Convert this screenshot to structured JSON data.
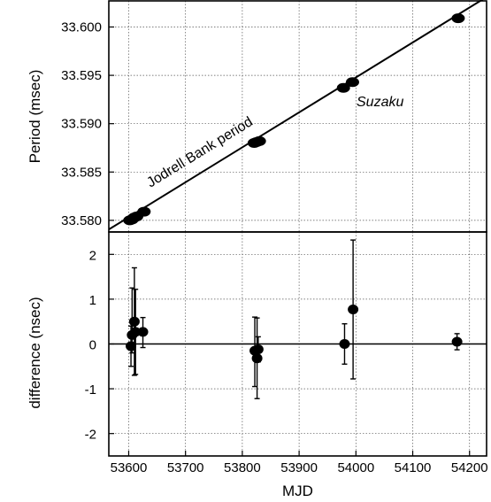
{
  "chart_data": [
    {
      "type": "scatter",
      "panel": "top",
      "title": "",
      "xlabel": "MJD",
      "ylabel": "Period (msec)",
      "xlim": [
        53565,
        54230
      ],
      "ylim": [
        33.5788,
        33.6027
      ],
      "grid": true,
      "yticks": [
        "33.580",
        "33.585",
        "33.590",
        "33.595",
        "33.600"
      ],
      "ytick_values": [
        33.58,
        33.585,
        33.59,
        33.595,
        33.6
      ],
      "line": {
        "name": "Jodrell Bank period",
        "x": [
          53565,
          54230
        ],
        "y": [
          33.57906,
          33.6031
        ]
      },
      "points": {
        "x": [
          53602,
          53606,
          53610,
          53614,
          53627,
          53821,
          53825,
          53830,
          53978,
          53994,
          54180
        ],
        "y": [
          33.58,
          33.5801,
          33.5803,
          33.5804,
          33.5809,
          33.588,
          33.5881,
          33.5882,
          33.5937,
          33.5943,
          33.6009
        ]
      },
      "annotations": [
        "Jodrell Bank period",
        "Suzaku"
      ]
    },
    {
      "type": "scatter",
      "panel": "bottom",
      "title": "",
      "xlabel": "MJD",
      "ylabel": "difference (nsec)",
      "xlim": [
        53565,
        54230
      ],
      "ylim": [
        -2.5,
        2.5
      ],
      "grid": true,
      "xticks": [
        "53600",
        "53700",
        "53800",
        "53900",
        "54000",
        "54100",
        "54200"
      ],
      "xtick_values": [
        53600,
        53700,
        53800,
        53900,
        54000,
        54100,
        54200
      ],
      "yticks": [
        "2",
        "1",
        "0",
        "-1",
        "-2"
      ],
      "ytick_values": [
        2,
        1,
        0,
        -1,
        -2
      ],
      "zero_line": true,
      "points": {
        "x": [
          53604,
          53606,
          53610,
          53612,
          53625,
          53822,
          53826,
          53828,
          53980,
          53995,
          54178
        ],
        "y": [
          -0.05,
          0.2,
          0.5,
          0.27,
          0.27,
          -0.15,
          -0.32,
          -0.12,
          0.0,
          0.77,
          0.05
        ],
        "err_low": [
          0.45,
          0.4,
          1.2,
          0.95,
          0.35,
          0.8,
          0.9,
          0.28,
          0.45,
          1.55,
          0.18
        ],
        "err_high": [
          0.45,
          1.05,
          1.2,
          0.95,
          0.32,
          0.75,
          0.9,
          0.28,
          0.45,
          1.55,
          0.18
        ]
      }
    }
  ]
}
